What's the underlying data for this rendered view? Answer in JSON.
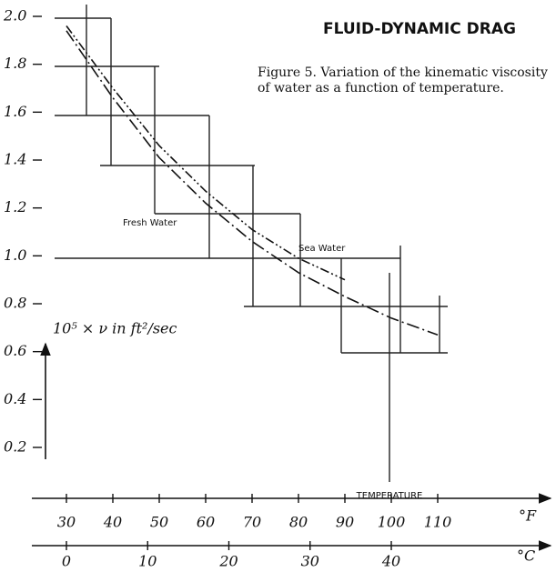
{
  "chart_data": {
    "type": "line",
    "title": "FLUID-DYNAMIC DRAG",
    "caption": "Figure 5. Variation of the kinematic viscosity of water as a function of temperature.",
    "ylabel": "10⁵ × ν in ft²/sec",
    "xlabel": "TEMPERATURE",
    "xunit": "°F",
    "x2unit": "°C",
    "series": [
      {
        "name": "Fresh Water",
        "color": "#111",
        "x": [
          30,
          40,
          50,
          60,
          70,
          80,
          90,
          100,
          110
        ],
        "values": [
          1.94,
          1.66,
          1.41,
          1.22,
          1.06,
          0.93,
          0.83,
          0.74,
          0.67
        ]
      },
      {
        "name": "Sea Water",
        "color": "#111",
        "x": [
          30,
          40,
          50,
          60,
          70,
          80,
          90
        ],
        "values": [
          1.96,
          1.7,
          1.46,
          1.27,
          1.11,
          0.99,
          0.9
        ]
      }
    ],
    "xlim": [
      30,
      110
    ],
    "xticks": [
      30,
      40,
      50,
      60,
      70,
      80,
      90,
      100,
      110
    ],
    "x2lim": [
      0,
      40
    ],
    "x2ticks": [
      0,
      10,
      20,
      30,
      40
    ],
    "ylim": [
      0.2,
      2
    ],
    "yticks": [
      {
        "value": 2,
        "label": "2.0"
      },
      1.8,
      1.6,
      1.4,
      1.2,
      {
        "value": 1,
        "label": "1.0"
      },
      0.8,
      0.6,
      0.4,
      0.2
    ]
  }
}
